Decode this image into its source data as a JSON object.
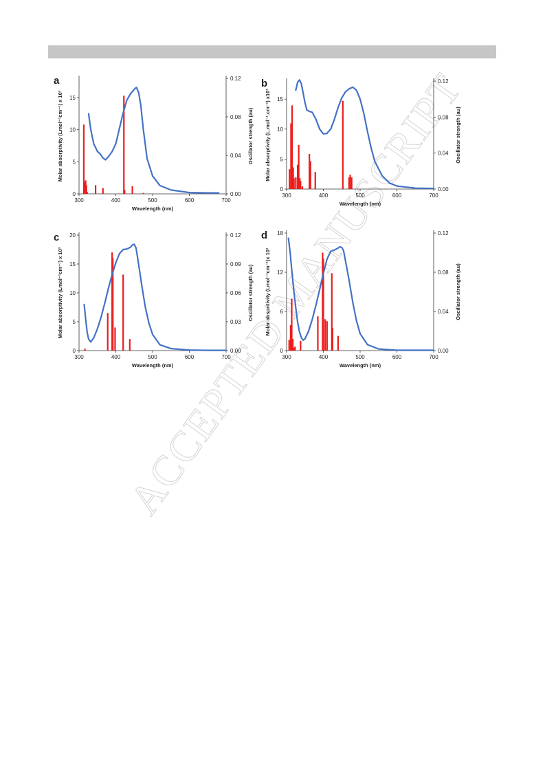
{
  "watermark": "ACCEPTED MANUSCRIPT",
  "colors": {
    "curve": "#4472c4",
    "bars": "#ee1c1c",
    "header_bar": "#c6c6c6"
  },
  "chart_data": [
    {
      "type": "line+bar",
      "panel_label": "a",
      "xlabel": "Wavelength (nm)",
      "ylabel": "Molar absorptivity (Lmol⁻¹cm⁻¹) x 10³",
      "y2label": "Oscillator strength (au)",
      "xlim": [
        300,
        700
      ],
      "ylim": [
        0,
        18
      ],
      "y2lim": [
        0,
        0.12
      ],
      "xticks": [
        "300",
        "400",
        "500",
        "600",
        "700"
      ],
      "yticks": [
        "0",
        "5",
        "10",
        "15"
      ],
      "y2ticks": [
        "0.00",
        "0.04",
        "0.08",
        "0.12"
      ],
      "line_x": [
        326,
        332,
        340,
        350,
        358,
        365,
        372,
        380,
        390,
        400,
        410,
        420,
        430,
        440,
        450,
        456,
        462,
        468,
        475,
        485,
        500,
        520,
        550,
        600,
        650,
        680
      ],
      "line_y": [
        12.5,
        10.0,
        7.8,
        6.6,
        6.2,
        5.6,
        5.3,
        5.8,
        6.6,
        7.8,
        10.2,
        12.6,
        14.6,
        15.6,
        16.3,
        16.6,
        15.8,
        13.8,
        10.0,
        5.5,
        2.8,
        1.3,
        0.6,
        0.2,
        0.15,
        0.15
      ],
      "bars_x": [
        313,
        315,
        318,
        320,
        322,
        345,
        365,
        422,
        424,
        445,
        475
      ],
      "bars_f": [
        0.072,
        0.012,
        0.014,
        0.009,
        0.002,
        0.009,
        0.006,
        0.102,
        0.004,
        0.008,
        0.001
      ]
    },
    {
      "type": "line+bar",
      "panel_label": "b",
      "xlabel": "Wavelength (nm)",
      "ylabel": "Molar absorptivity (L.mol⁻¹.cm⁻¹) x10³",
      "y2label": "Oscillator strength (au)",
      "xlim": [
        300,
        700
      ],
      "ylim": [
        0,
        18
      ],
      "y2lim": [
        0,
        0.12
      ],
      "xticks": [
        "300",
        "400",
        "500",
        "600",
        "700"
      ],
      "yticks": [
        "0",
        "5",
        "10",
        "15"
      ],
      "y2ticks": [
        "0.00",
        "0.04",
        "0.08",
        "0.12"
      ],
      "line_x": [
        325,
        330,
        335,
        340,
        345,
        350,
        355,
        360,
        370,
        380,
        390,
        400,
        410,
        420,
        430,
        440,
        450,
        460,
        470,
        480,
        490,
        500,
        510,
        520,
        530,
        540,
        560,
        580,
        600,
        650,
        700
      ],
      "line_y": [
        16.5,
        17.8,
        18.2,
        17.6,
        16.0,
        14.4,
        13.2,
        13.0,
        12.8,
        11.6,
        10.0,
        9.2,
        9.3,
        10.0,
        11.6,
        13.6,
        15.2,
        16.2,
        16.7,
        17.0,
        16.5,
        15.0,
        12.6,
        9.6,
        6.8,
        4.6,
        2.2,
        1.0,
        0.5,
        0.15,
        0.1
      ],
      "bars_x": [
        308,
        312,
        315,
        318,
        320,
        325,
        330,
        333,
        336,
        338,
        343,
        362,
        365,
        378,
        453,
        470,
        473,
        477
      ],
      "bars_f": [
        0.022,
        0.073,
        0.093,
        0.024,
        0.012,
        0.013,
        0.027,
        0.049,
        0.012,
        0.009,
        0.003,
        0.039,
        0.031,
        0.019,
        0.098,
        0.013,
        0.016,
        0.013
      ]
    },
    {
      "type": "line+bar",
      "panel_label": "c",
      "xlabel": "Wavelength (nm)",
      "ylabel": "Molar absorptivity (Lmol⁻¹cm⁻¹) x 10³",
      "y2label": "Oscillator strength (au)",
      "xlim": [
        300,
        700
      ],
      "ylim": [
        0,
        20
      ],
      "y2lim": [
        0,
        0.12
      ],
      "xticks": [
        "300",
        "400",
        "500",
        "600",
        "700"
      ],
      "yticks": [
        "0",
        "5",
        "10",
        "15",
        "20"
      ],
      "y2ticks": [
        "0.00",
        "0.03",
        "0.06",
        "0.09",
        "0.12"
      ],
      "line_x": [
        314,
        318,
        322,
        326,
        332,
        340,
        350,
        360,
        370,
        380,
        390,
        400,
        410,
        420,
        430,
        440,
        445,
        450,
        455,
        460,
        470,
        480,
        490,
        500,
        520,
        550,
        600,
        650,
        700
      ],
      "line_y": [
        8.0,
        5.5,
        3.2,
        2.0,
        1.5,
        2.2,
        3.8,
        5.8,
        8.2,
        10.8,
        13.2,
        15.2,
        16.8,
        17.5,
        17.6,
        17.9,
        18.3,
        18.4,
        17.8,
        15.8,
        11.6,
        7.6,
        4.8,
        2.8,
        1.0,
        0.35,
        0.1,
        0.05,
        0.05
      ],
      "bars_x": [
        316,
        378,
        390,
        392,
        398,
        420,
        438
      ],
      "bars_f": [
        0.002,
        0.039,
        0.102,
        0.096,
        0.024,
        0.079,
        0.012
      ]
    },
    {
      "type": "line+bar",
      "panel_label": "d",
      "xlabel": "Wavelength (nm)",
      "ylabel": "Molar abspritivity (Lmol⁻¹cm⁻¹)x 10³",
      "y2label": "Oscillator strength (au)",
      "xlim": [
        300,
        700
      ],
      "ylim": [
        0,
        18
      ],
      "y2lim": [
        0,
        0.12
      ],
      "xticks": [
        "300",
        "400",
        "500",
        "600",
        "700"
      ],
      "yticks": [
        "0",
        "6",
        "12",
        "18"
      ],
      "y2ticks": [
        "0.00",
        "0.04",
        "0.08",
        "0.12"
      ],
      "line_x": [
        305,
        310,
        315,
        320,
        325,
        330,
        335,
        340,
        345,
        350,
        360,
        370,
        380,
        390,
        400,
        410,
        420,
        430,
        440,
        445,
        450,
        455,
        460,
        470,
        480,
        490,
        500,
        520,
        550,
        600,
        650,
        700
      ],
      "line_y": [
        17.2,
        14.8,
        11.8,
        9.0,
        6.5,
        4.4,
        2.9,
        2.0,
        1.6,
        1.8,
        3.0,
        4.8,
        7.0,
        9.4,
        11.8,
        14.0,
        15.2,
        15.4,
        15.7,
        15.9,
        15.8,
        15.3,
        13.8,
        10.8,
        7.4,
        4.6,
        2.6,
        0.9,
        0.25,
        0.05,
        0.05,
        0.05
      ],
      "bars_x": [
        307,
        311,
        314,
        317,
        320,
        323,
        338,
        385,
        398,
        400,
        405,
        410,
        423,
        425,
        440
      ],
      "bars_f": [
        0.011,
        0.026,
        0.053,
        0.012,
        0.003,
        0.004,
        0.01,
        0.035,
        0.1,
        0.094,
        0.032,
        0.03,
        0.079,
        0.023,
        0.015
      ]
    }
  ]
}
